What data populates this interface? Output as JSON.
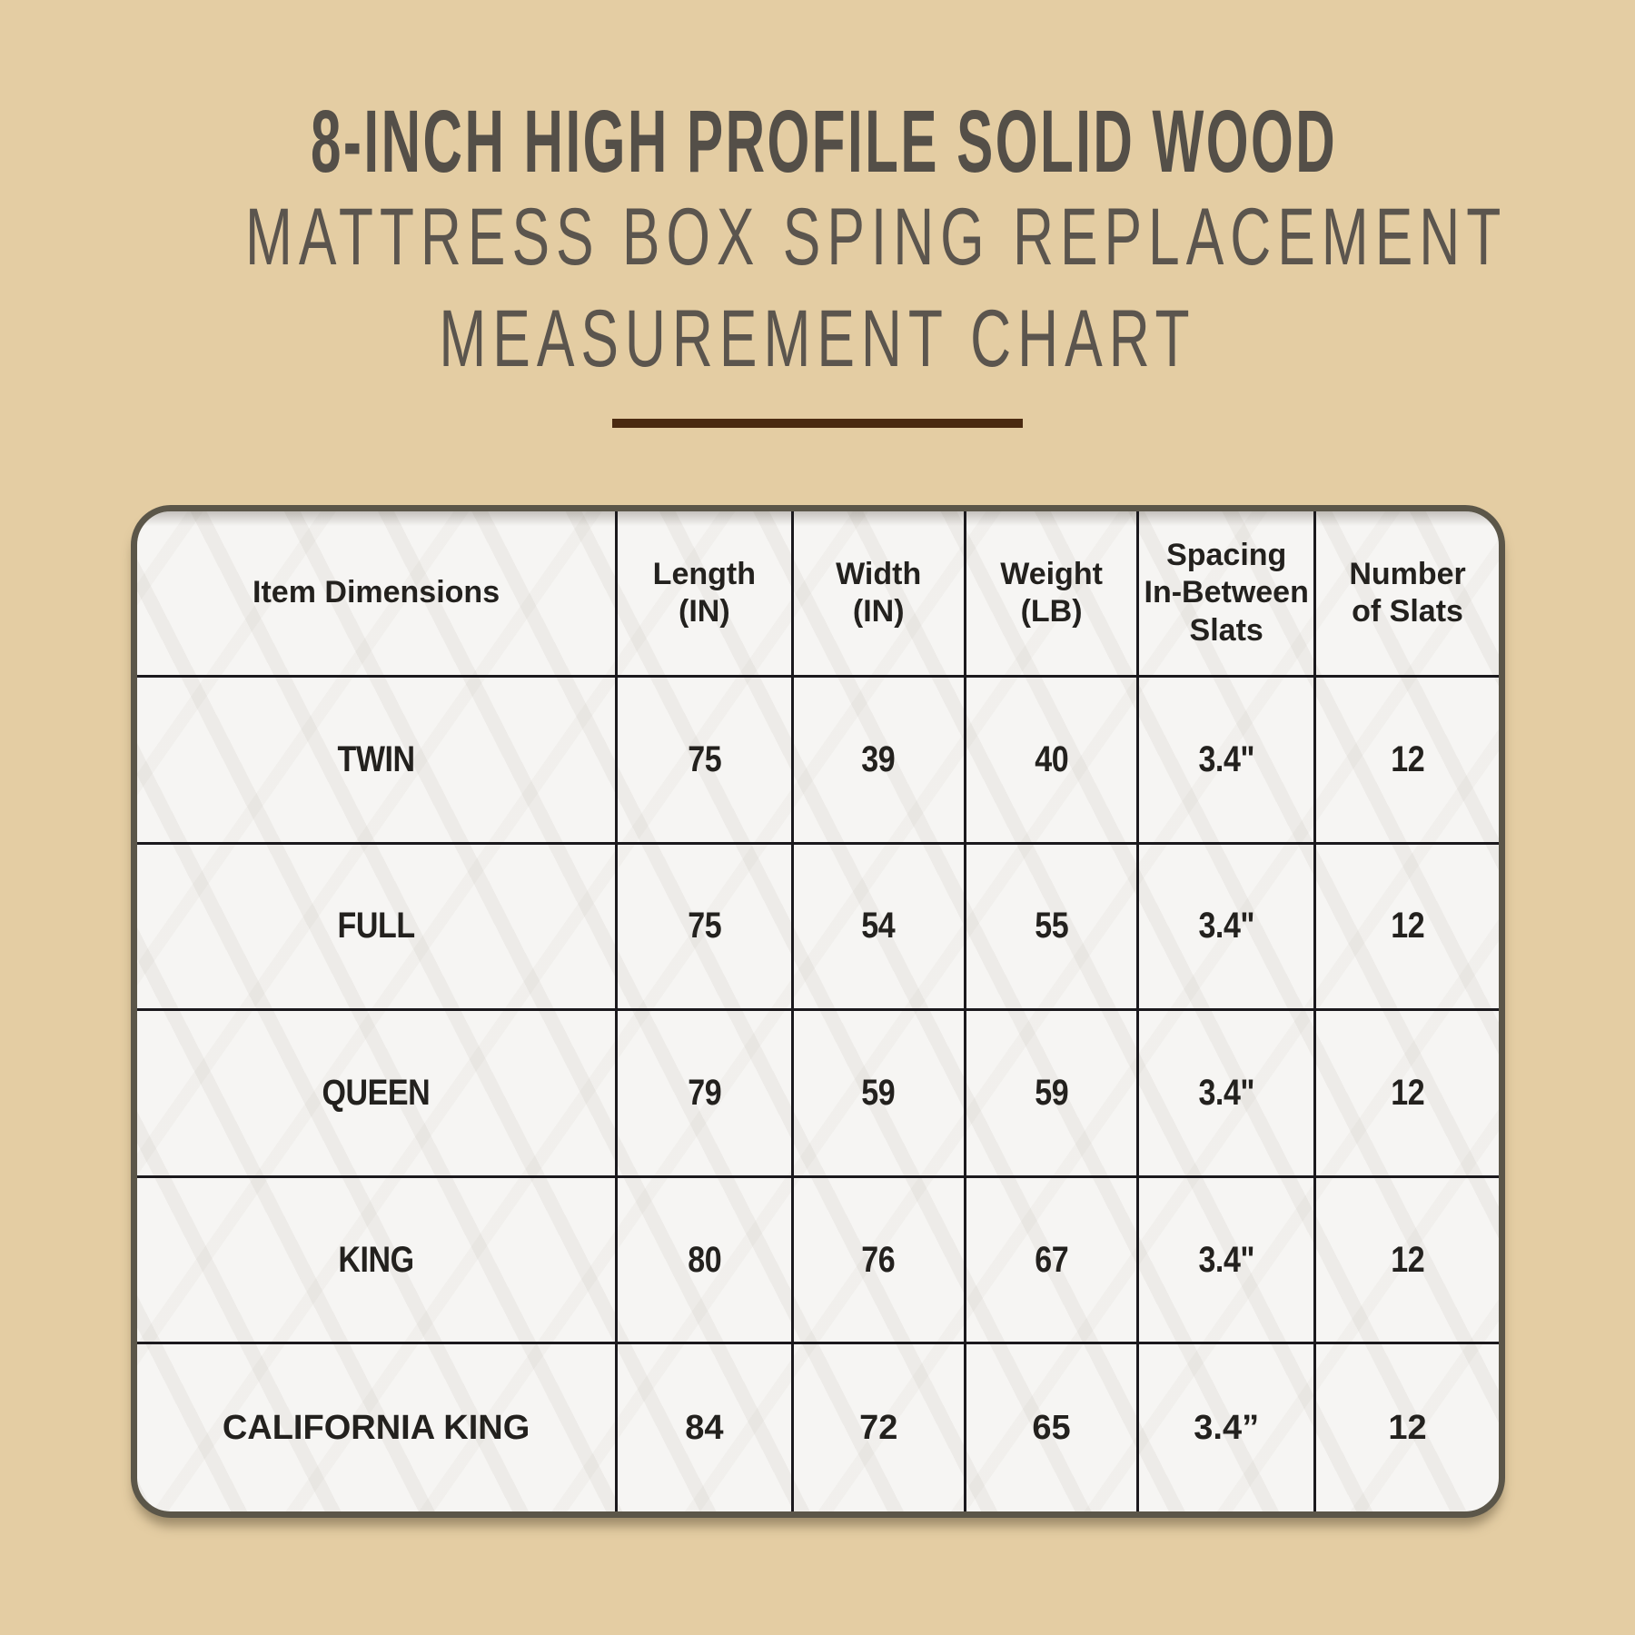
{
  "title": {
    "line1": "8-INCH HIGH PROFILE SOLID WOOD",
    "line2": "MATTRESS BOX SPING REPLACEMENT",
    "line3": "MEASUREMENT CHART"
  },
  "colors": {
    "background": "#e4cda3",
    "title_line1": "#544f48",
    "title_line23": "#5b554e",
    "divider": "#4a2a11",
    "card_border": "#5b5649",
    "card_background": "#f6f5f3",
    "grid_line": "#1b191d",
    "cell_text": "#23211e"
  },
  "chart_data": {
    "type": "table",
    "title": "8-INCH HIGH PROFILE SOLID WOOD MATTRESS BOX SPING REPLACEMENT MEASUREMENT CHART",
    "columns": [
      {
        "lines": [
          "Item Dimensions"
        ]
      },
      {
        "lines": [
          "Length",
          "(IN)"
        ]
      },
      {
        "lines": [
          "Width",
          "(IN)"
        ]
      },
      {
        "lines": [
          "Weight",
          "(LB)"
        ]
      },
      {
        "lines": [
          "Spacing",
          "In-Between",
          "Slats"
        ]
      },
      {
        "lines": [
          "Number",
          "of Slats"
        ]
      }
    ],
    "rows": [
      {
        "style": "condensed",
        "cells": [
          "TWIN",
          "75",
          "39",
          "40",
          "3.4\"",
          "12"
        ]
      },
      {
        "style": "condensed",
        "cells": [
          "FULL",
          "75",
          "54",
          "55",
          "3.4\"",
          "12"
        ]
      },
      {
        "style": "condensed",
        "cells": [
          "QUEEN",
          "79",
          "59",
          "59",
          "3.4\"",
          "12"
        ]
      },
      {
        "style": "condensed",
        "cells": [
          "KING",
          "80",
          "76",
          "67",
          "3.4\"",
          "12"
        ]
      },
      {
        "style": "regular",
        "cells": [
          "CALIFORNIA KING",
          "84",
          "72",
          "65",
          "3.4”",
          "12"
        ]
      }
    ]
  }
}
